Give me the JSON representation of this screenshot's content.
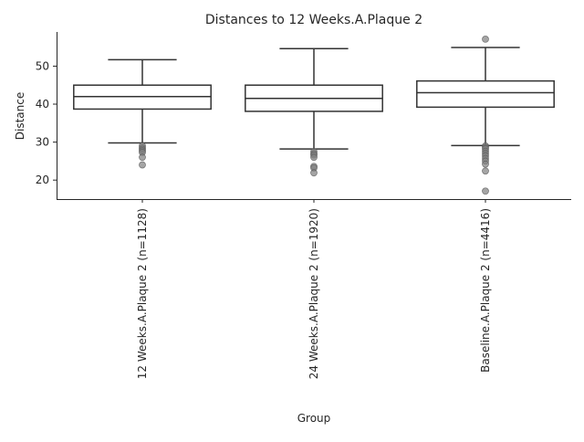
{
  "chart_data": {
    "type": "box",
    "title": "Distances to 12 Weeks.A.Plaque 2",
    "xlabel": "Group",
    "ylabel": "Distance",
    "ylim": [
      15,
      59
    ],
    "yticks": [
      20,
      30,
      40,
      50
    ],
    "grid": false,
    "colors": {
      "box_edge": "#333333",
      "box_fill": "#ffffff",
      "outlier": "#7f7f7f",
      "axis": "#262626"
    },
    "categories": [
      "12 Weeks.A.Plaque 2 (n=1128)",
      "24 Weeks.A.Plaque 2 (n=1920)",
      "Baseline.A.Plaque 2 (n=4416)"
    ],
    "boxes": [
      {
        "whisker_low": 29.8,
        "q1": 38.7,
        "median": 42.0,
        "q3": 45.0,
        "whisker_high": 51.7,
        "outliers": [
          29.0,
          28.5,
          28.1,
          27.7,
          27.3,
          26.0,
          24.0
        ]
      },
      {
        "whisker_low": 28.2,
        "q1": 38.1,
        "median": 41.5,
        "q3": 45.0,
        "whisker_high": 54.6,
        "outliers": [
          27.5,
          27.0,
          26.6,
          26.0,
          23.6,
          23.2,
          21.9
        ]
      },
      {
        "whisker_low": 29.1,
        "q1": 39.2,
        "median": 43.0,
        "q3": 46.1,
        "whisker_high": 54.9,
        "outliers": [
          57.1,
          29.0,
          28.6,
          28.2,
          27.6,
          27.0,
          26.4,
          25.7,
          25.0,
          24.2,
          22.4,
          17.1
        ]
      }
    ]
  }
}
